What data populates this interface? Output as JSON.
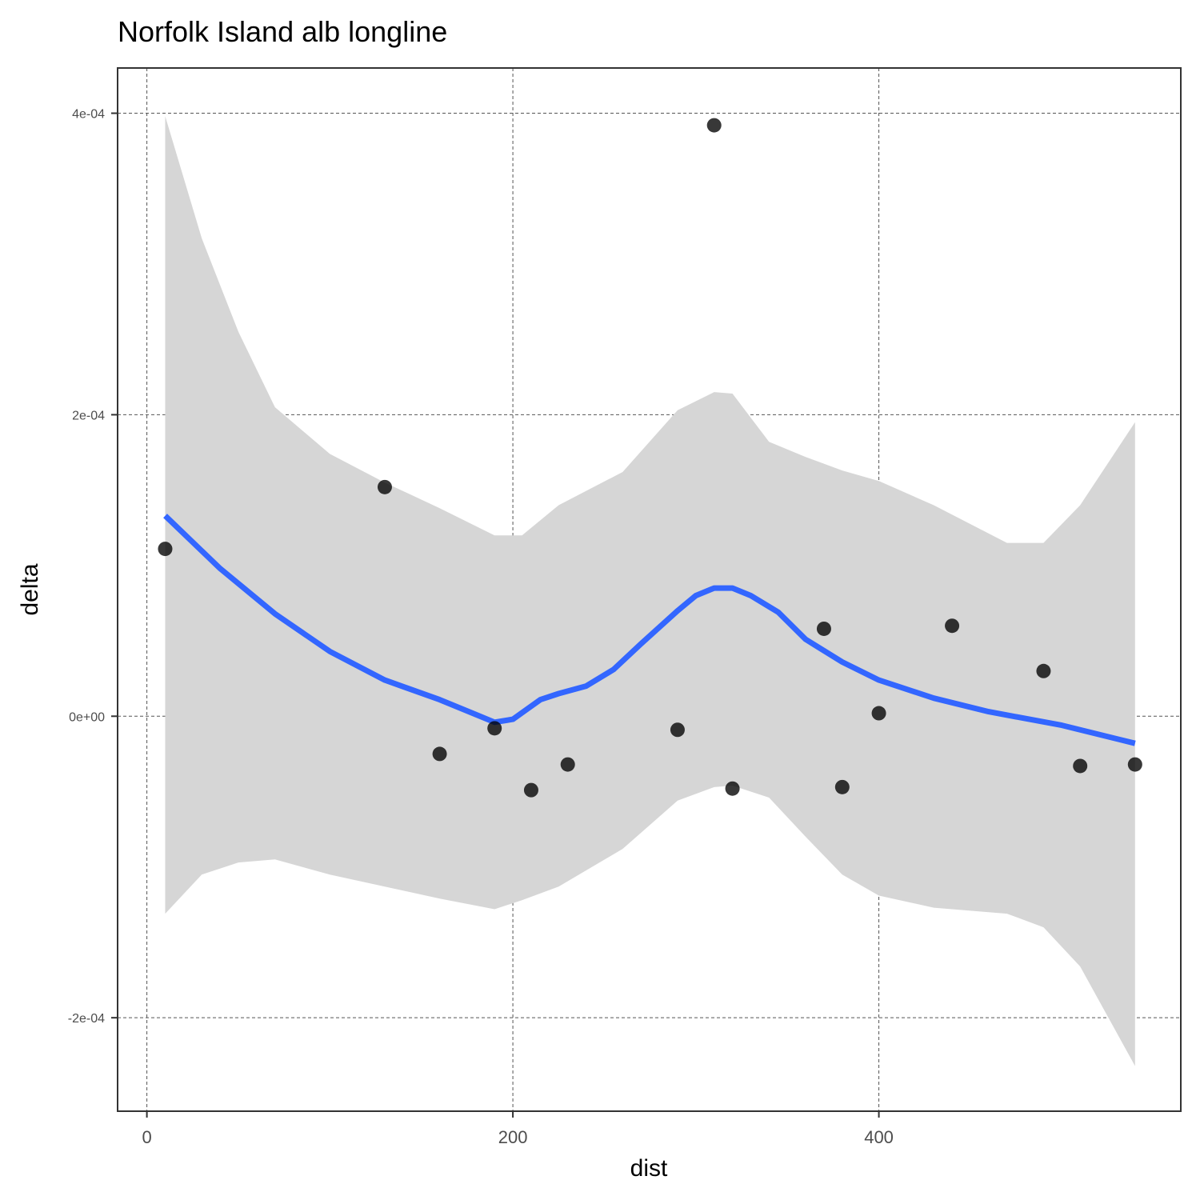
{
  "chart_data": {
    "type": "scatter",
    "title": "Norfolk Island alb longline",
    "xlabel": "dist",
    "ylabel": "delta",
    "xlim": [
      -16,
      565
    ],
    "ylim": [
      -0.000262,
      0.00043
    ],
    "x_ticks": [
      0,
      200,
      400
    ],
    "x_tick_labels": [
      "0",
      "200",
      "400"
    ],
    "y_ticks": [
      -0.0002,
      0,
      0.0002,
      0.0004
    ],
    "y_tick_labels": [
      "-2e-04",
      "0e+00",
      "2e-04",
      "4e-04"
    ],
    "grid": true,
    "grid_style": "dashed",
    "colors": {
      "points": "#000000",
      "smooth_line": "#3366FF",
      "confidence_band": "#d6d6d6",
      "grid": "#555555",
      "panel_border": "#333333"
    },
    "points": [
      {
        "x": 10,
        "y": 0.000111
      },
      {
        "x": 130,
        "y": 0.000152
      },
      {
        "x": 160,
        "y": -2.5e-05
      },
      {
        "x": 190,
        "y": -8e-06
      },
      {
        "x": 210,
        "y": -4.9e-05
      },
      {
        "x": 230,
        "y": -3.2e-05
      },
      {
        "x": 290,
        "y": -9e-06
      },
      {
        "x": 310,
        "y": 0.000392
      },
      {
        "x": 320,
        "y": -4.8e-05
      },
      {
        "x": 370,
        "y": 5.8e-05
      },
      {
        "x": 380,
        "y": -4.7e-05
      },
      {
        "x": 400,
        "y": 2e-06
      },
      {
        "x": 440,
        "y": 6e-05
      },
      {
        "x": 490,
        "y": 3e-05
      },
      {
        "x": 510,
        "y": -3.3e-05
      },
      {
        "x": 540,
        "y": -3.2e-05
      }
    ],
    "smooth_line": {
      "x": [
        10,
        40,
        70,
        100,
        130,
        160,
        190,
        200,
        215,
        225,
        240,
        255,
        270,
        290,
        300,
        310,
        320,
        330,
        345,
        360,
        380,
        400,
        430,
        460,
        500,
        540
      ],
      "y": [
        0.000133,
        9.8e-05,
        6.8e-05,
        4.3e-05,
        2.4e-05,
        1.1e-05,
        -4e-06,
        -2e-06,
        1.1e-05,
        1.5e-05,
        2e-05,
        3.1e-05,
        4.8e-05,
        7e-05,
        8e-05,
        8.5e-05,
        8.5e-05,
        8e-05,
        6.9e-05,
        5.1e-05,
        3.6e-05,
        2.4e-05,
        1.2e-05,
        3e-06,
        -6e-06,
        -1.8e-05
      ]
    },
    "confidence_band": {
      "x": [
        10,
        30,
        50,
        70,
        100,
        130,
        160,
        190,
        205,
        225,
        260,
        290,
        310,
        320,
        340,
        360,
        380,
        400,
        430,
        470,
        490,
        510,
        540
      ],
      "upper": [
        0.000398,
        0.000317,
        0.000255,
        0.000205,
        0.000174,
        0.000155,
        0.000138,
        0.00012,
        0.00012,
        0.00014,
        0.000162,
        0.000203,
        0.000215,
        0.000214,
        0.000182,
        0.000172,
        0.000163,
        0.000156,
        0.00014,
        0.000115,
        0.000115,
        0.00014,
        0.000195
      ],
      "lower": [
        -0.000131,
        -0.000105,
        -9.7e-05,
        -9.5e-05,
        -0.000105,
        -0.000113,
        -0.000121,
        -0.000128,
        -0.000122,
        -0.000113,
        -8.8e-05,
        -5.6e-05,
        -4.7e-05,
        -4.6e-05,
        -5.4e-05,
        -8e-05,
        -0.000105,
        -0.000119,
        -0.000127,
        -0.000131,
        -0.00014,
        -0.000166,
        -0.000232
      ]
    }
  }
}
